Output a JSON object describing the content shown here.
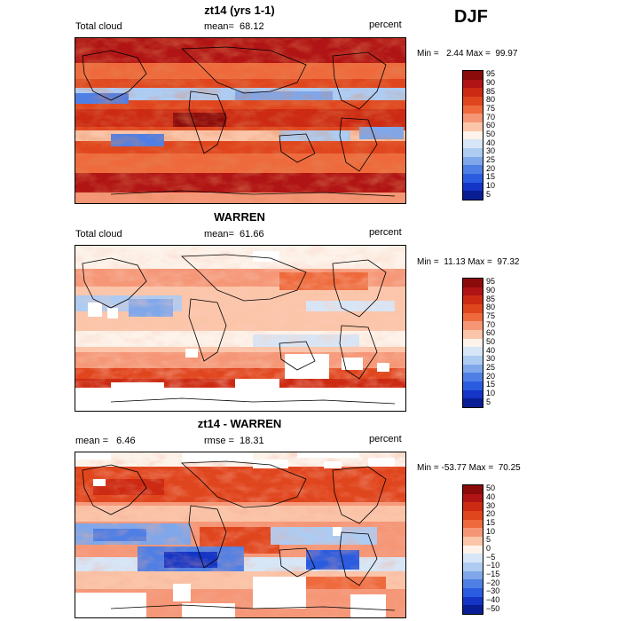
{
  "season": "DJF",
  "panels": [
    {
      "title": "zt14 (yrs 1-1)",
      "left_label": "Total cloud",
      "center_label": "mean=  68.12",
      "right_label": "percent",
      "minmax": "Min =   2.44 Max =  99.97",
      "colorbar": {
        "labels": [
          "95",
          "90",
          "85",
          "80",
          "75",
          "70",
          "60",
          "50",
          "40",
          "30",
          "25",
          "20",
          "15",
          "10",
          "5"
        ],
        "colors": [
          "#8b0a0a",
          "#b01414",
          "#cc2a12",
          "#e0461e",
          "#ee6a3c",
          "#f59777",
          "#fbc5a9",
          "#fdf3ea",
          "#d7e6f7",
          "#aecbf1",
          "#7fa7ea",
          "#4f7fe4",
          "#2b5ce0",
          "#1435c6",
          "#091e94"
        ]
      }
    },
    {
      "title": "WARREN",
      "left_label": "Total cloud",
      "center_label": "mean=  61.66",
      "right_label": "percent",
      "minmax": "Min =  11.13 Max =  97.32",
      "colorbar": {
        "labels": [
          "95",
          "90",
          "85",
          "80",
          "75",
          "70",
          "60",
          "50",
          "40",
          "30",
          "25",
          "20",
          "15",
          "10",
          "5"
        ],
        "colors": [
          "#8b0a0a",
          "#b01414",
          "#cc2a12",
          "#e0461e",
          "#ee6a3c",
          "#f59777",
          "#fbc5a9",
          "#fdf3ea",
          "#d7e6f7",
          "#aecbf1",
          "#7fa7ea",
          "#4f7fe4",
          "#2b5ce0",
          "#1435c6",
          "#091e94"
        ]
      }
    },
    {
      "title": "zt14 - WARREN",
      "left_label": "mean =   6.46",
      "center_label": "rmse =  18.31",
      "right_label": "percent",
      "minmax": "Min = -53.77 Max =  70.25",
      "colorbar": {
        "labels": [
          "50",
          "40",
          "30",
          "20",
          "15",
          "10",
          "5",
          "0",
          "−5",
          "−10",
          "−15",
          "−20",
          "−30",
          "−40",
          "−50"
        ],
        "colors": [
          "#8b0a0a",
          "#b01414",
          "#cc2a12",
          "#e0461e",
          "#ee6a3c",
          "#f59777",
          "#fbc5a9",
          "#fdf3ea",
          "#d7e6f7",
          "#aecbf1",
          "#7fa7ea",
          "#4f7fe4",
          "#2b5ce0",
          "#1435c6",
          "#091e94"
        ]
      }
    }
  ]
}
